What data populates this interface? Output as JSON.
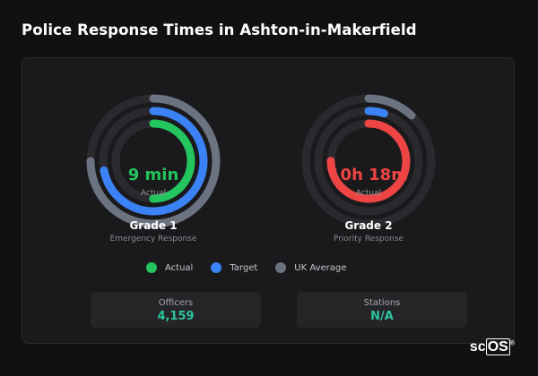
{
  "page": {
    "title": "Police Response Times in Ashton-in-Makerfield"
  },
  "colors": {
    "actual": "#22c55e",
    "target": "#3b82f6",
    "uk_average": "#6b7280",
    "over": "#ef4444",
    "track": "#2a2a2e"
  },
  "gauges": [
    {
      "value": "9 min",
      "value_color": "#22c55e",
      "sub": "Actual",
      "title": "Grade 1",
      "subtitle": "Emergency Response",
      "uk_average_fraction": 0.75,
      "target_fraction": 0.72,
      "actual_fraction": 0.5
    },
    {
      "value": "10h 18m",
      "value_color": "#ef4444",
      "sub": "Actual",
      "title": "Grade 2",
      "subtitle": "Priority Response",
      "uk_average_fraction": 0.12,
      "target_fraction": 0.05,
      "actual_fraction": 0.75
    }
  ],
  "legend": [
    {
      "label": "Actual",
      "icon": "green-dot"
    },
    {
      "label": "Target",
      "icon": "blue-dot"
    },
    {
      "label": "UK Average",
      "icon": "gray-dot"
    }
  ],
  "stats": [
    {
      "label": "Officers",
      "value": "4,159"
    },
    {
      "label": "Stations",
      "value": "N/A"
    }
  ],
  "watermark": {
    "prefix": "sc",
    "boxed": "OS",
    "mark": "®"
  }
}
